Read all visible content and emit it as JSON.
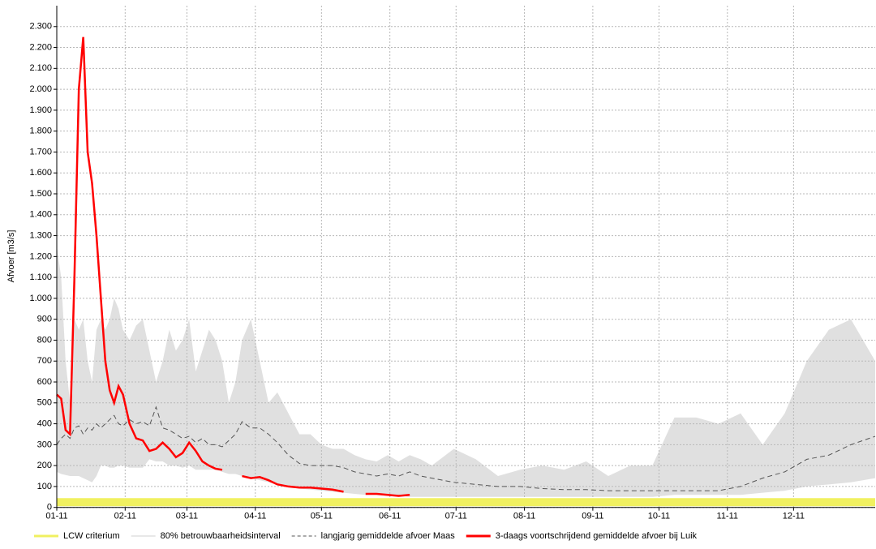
{
  "chart_data": {
    "type": "line",
    "ylabel": "Afvoer [m3/s]",
    "grid": true,
    "xlim": [
      0,
      371
    ],
    "xticks": [
      {
        "value": 0,
        "label": "01-11"
      },
      {
        "value": 31,
        "label": "02-11"
      },
      {
        "value": 59,
        "label": "03-11"
      },
      {
        "value": 90,
        "label": "04-11"
      },
      {
        "value": 120,
        "label": "05-11"
      },
      {
        "value": 151,
        "label": "06-11"
      },
      {
        "value": 181,
        "label": "07-11"
      },
      {
        "value": 212,
        "label": "08-11"
      },
      {
        "value": 243,
        "label": "09-11"
      },
      {
        "value": 273,
        "label": "10-11"
      },
      {
        "value": 304,
        "label": "11-11"
      },
      {
        "value": 334,
        "label": "12-11"
      }
    ],
    "ylim": [
      0,
      2400
    ],
    "yticks": [
      0,
      100,
      200,
      300,
      400,
      500,
      600,
      700,
      800,
      900,
      {
        "value": 1000,
        "label": "1.000"
      },
      {
        "value": 1100,
        "label": "1.100"
      },
      {
        "value": 1200,
        "label": "1.200"
      },
      {
        "value": 1300,
        "label": "1.300"
      },
      {
        "value": 1400,
        "label": "1.400"
      },
      {
        "value": 1500,
        "label": "1.500"
      },
      {
        "value": 1600,
        "label": "1.600"
      },
      {
        "value": 1700,
        "label": "1.700"
      },
      {
        "value": 1800,
        "label": "1.800"
      },
      {
        "value": 1900,
        "label": "1.900"
      },
      {
        "value": 2000,
        "label": "2.000"
      },
      {
        "value": 2100,
        "label": "2.100"
      },
      {
        "value": 2200,
        "label": "2.200"
      },
      {
        "value": 2300,
        "label": "2.300"
      }
    ],
    "x": [
      0,
      2,
      4,
      6,
      8,
      10,
      12,
      14,
      16,
      18,
      20,
      22,
      24,
      26,
      28,
      30,
      33,
      36,
      39,
      42,
      45,
      48,
      51,
      54,
      57,
      60,
      63,
      66,
      69,
      72,
      75,
      78,
      81,
      84,
      88,
      92,
      96,
      100,
      105,
      110,
      115,
      120,
      125,
      130,
      135,
      140,
      145,
      150,
      155,
      160,
      165,
      170,
      180,
      190,
      200,
      210,
      220,
      230,
      240,
      250,
      260,
      270,
      280,
      290,
      300,
      310,
      320,
      330,
      340,
      350,
      360,
      371
    ],
    "threshold": {
      "name": "LCW criterium",
      "value": 25,
      "color": "#f0f060"
    },
    "band": {
      "name": "80% betrouwbaarheidsinterval",
      "color": "#e0e0e0",
      "upper": [
        1250,
        1100,
        700,
        500,
        900,
        850,
        900,
        700,
        600,
        850,
        900,
        850,
        900,
        1000,
        950,
        850,
        800,
        870,
        900,
        750,
        600,
        700,
        850,
        750,
        800,
        900,
        650,
        750,
        850,
        800,
        700,
        500,
        600,
        800,
        900,
        700,
        500,
        550,
        450,
        350,
        350,
        300,
        280,
        280,
        250,
        230,
        220,
        250,
        220,
        250,
        230,
        200,
        280,
        230,
        150,
        180,
        200,
        180,
        220,
        150,
        200,
        200,
        430,
        430,
        400,
        450,
        300,
        450,
        700,
        850,
        900,
        700
      ],
      "lower": [
        170,
        160,
        155,
        150,
        150,
        150,
        140,
        130,
        120,
        150,
        200,
        200,
        190,
        190,
        200,
        200,
        190,
        190,
        190,
        230,
        220,
        220,
        200,
        200,
        190,
        200,
        180,
        180,
        180,
        180,
        170,
        160,
        160,
        150,
        140,
        130,
        120,
        110,
        100,
        90,
        85,
        80,
        75,
        70,
        65,
        60,
        60,
        55,
        55,
        50,
        50,
        50,
        50,
        50,
        50,
        50,
        50,
        50,
        50,
        50,
        50,
        50,
        60,
        60,
        60,
        60,
        70,
        80,
        100,
        110,
        120,
        140
      ]
    },
    "series": [
      {
        "name": "langjarig gemiddelde afvoer Maas",
        "color": "#555555",
        "dashed": true,
        "values": [
          300,
          330,
          350,
          330,
          380,
          390,
          350,
          380,
          370,
          400,
          380,
          400,
          420,
          440,
          400,
          390,
          420,
          400,
          410,
          390,
          480,
          380,
          370,
          350,
          330,
          340,
          310,
          330,
          300,
          300,
          290,
          320,
          350,
          410,
          380,
          380,
          350,
          310,
          250,
          210,
          200,
          200,
          200,
          190,
          170,
          160,
          150,
          160,
          150,
          170,
          150,
          140,
          120,
          110,
          100,
          100,
          90,
          85,
          85,
          80,
          80,
          80,
          80,
          80,
          80,
          100,
          140,
          170,
          230,
          250,
          300,
          340
        ]
      },
      {
        "name": "3-daags voortschrijdend gemiddelde afvoer bij Luik",
        "color": "#ff0000",
        "dashed": false,
        "values": [
          540,
          520,
          370,
          350,
          1100,
          2000,
          2250,
          1700,
          1550,
          1300,
          1000,
          700,
          560,
          500,
          580,
          540,
          400,
          330,
          320,
          270,
          280,
          310,
          280,
          240,
          260,
          310,
          270,
          220,
          200,
          185,
          180,
          null,
          null,
          150,
          140,
          145,
          130,
          110,
          100,
          95,
          95,
          90,
          85,
          75,
          null,
          65,
          65,
          60,
          55,
          60,
          null,
          null,
          null,
          null,
          null,
          null,
          null,
          null,
          null,
          null,
          null,
          null,
          null,
          null,
          null,
          null,
          null,
          null,
          null,
          null,
          null,
          null
        ]
      }
    ]
  }
}
